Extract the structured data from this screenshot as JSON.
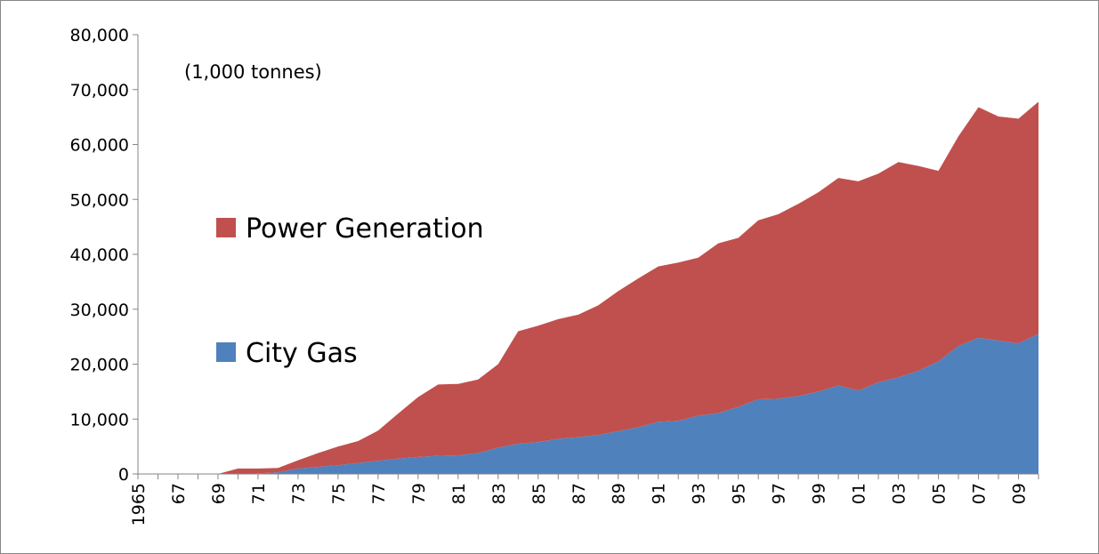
{
  "chart_data": {
    "type": "stacked-area",
    "annotation": "(1,000 tonnes)",
    "categories": [
      "1965",
      null,
      "67",
      null,
      "69",
      null,
      "71",
      null,
      "73",
      null,
      "75",
      null,
      "77",
      null,
      "79",
      null,
      "81",
      null,
      "83",
      null,
      "85",
      null,
      "87",
      null,
      "89",
      null,
      "91",
      null,
      "93",
      null,
      "95",
      null,
      "97",
      null,
      "99",
      null,
      "01",
      null,
      "03",
      null,
      "05",
      null,
      "07",
      null,
      "09",
      null
    ],
    "series": [
      {
        "name": "City Gas",
        "color": "#4f81bd",
        "values": [
          0,
          0,
          0,
          0,
          0,
          0,
          100,
          300,
          1000,
          1300,
          1600,
          2000,
          2400,
          2800,
          3100,
          3300,
          3400,
          3800,
          4800,
          5500,
          5800,
          6400,
          6700,
          7100,
          7800,
          8500,
          9500,
          9700,
          10600,
          11100,
          12200,
          13600,
          13700,
          14200,
          15000,
          16100,
          15200,
          16700,
          17600,
          18800,
          20500,
          23300,
          24800,
          24300,
          23800,
          25500
        ]
      },
      {
        "name": "Power Generation",
        "color": "#c0504d",
        "values": [
          0,
          0,
          0,
          0,
          0,
          1000,
          900,
          800,
          1500,
          2500,
          3400,
          4000,
          5500,
          8200,
          10900,
          13000,
          13000,
          13400,
          15200,
          20500,
          21200,
          21800,
          22300,
          23600,
          25500,
          27100,
          28300,
          28800,
          28800,
          30900,
          30800,
          32600,
          33600,
          35000,
          36300,
          37800,
          38100,
          38000,
          39200,
          37300,
          34700,
          38200,
          42000,
          40800,
          40900,
          42300
        ]
      }
    ],
    "ylim": [
      0,
      80000
    ],
    "yticks": [
      0,
      {
        "value": 10000,
        "label": "10,000"
      },
      {
        "value": 20000,
        "label": "20,000"
      },
      {
        "value": 30000,
        "label": "30,000"
      },
      {
        "value": 40000,
        "label": "40,000"
      },
      {
        "value": 50000,
        "label": "50,000"
      },
      {
        "value": 60000,
        "label": "60,000"
      },
      {
        "value": 70000,
        "label": "70,000"
      },
      {
        "value": 80000,
        "label": "80,000"
      }
    ]
  }
}
